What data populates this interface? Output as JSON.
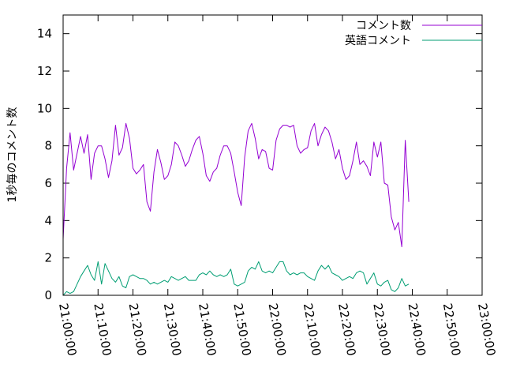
{
  "chart_data": {
    "type": "line",
    "title": "",
    "xlabel": "",
    "ylabel": "1秒毎のコメント数",
    "x_ticks": [
      "21:00:00",
      "21:10:00",
      "21:20:00",
      "21:30:00",
      "21:40:00",
      "21:50:00",
      "22:00:00",
      "22:10:00",
      "22:20:00",
      "22:30:00",
      "22:40:00",
      "22:50:00",
      "23:00:00"
    ],
    "y_ticks": [
      "0",
      "2",
      "4",
      "6",
      "8",
      "10",
      "12",
      "14"
    ],
    "xlim": [
      "21:00:00",
      "23:00:00"
    ],
    "ylim": [
      0,
      15
    ],
    "grid": false,
    "legend_position": "top-right",
    "x_step_seconds": 60,
    "series": [
      {
        "name": "コメント数",
        "color": "#9400d3",
        "values": [
          3.0,
          6.8,
          8.7,
          6.7,
          7.6,
          8.5,
          7.6,
          8.6,
          6.2,
          7.6,
          8.0,
          8.0,
          7.3,
          6.3,
          7.2,
          9.1,
          7.5,
          7.9,
          9.2,
          8.4,
          6.8,
          6.5,
          6.7,
          7.0,
          5.0,
          4.5,
          6.6,
          7.8,
          7.1,
          6.2,
          6.4,
          7.0,
          8.2,
          8.0,
          7.5,
          6.9,
          7.2,
          7.8,
          8.3,
          8.5,
          7.6,
          6.4,
          6.1,
          6.6,
          6.8,
          7.5,
          8.0,
          8.0,
          7.6,
          6.6,
          5.5,
          4.8,
          7.4,
          8.8,
          9.2,
          8.4,
          7.3,
          7.8,
          7.7,
          6.8,
          6.7,
          8.3,
          8.9,
          9.1,
          9.1,
          9.0,
          9.1,
          8.0,
          7.6,
          7.8,
          7.9,
          8.8,
          9.2,
          8.0,
          8.6,
          9.0,
          8.8,
          8.2,
          7.3,
          7.8,
          6.8,
          6.2,
          6.4,
          7.2,
          8.2,
          7.0,
          7.2,
          6.9,
          6.4,
          8.2,
          7.4,
          8.2,
          6.0,
          5.9,
          4.2,
          3.5,
          3.9,
          2.6,
          8.3,
          5.0
        ]
      },
      {
        "name": "英語コメント",
        "color": "#009e73",
        "values": [
          0.0,
          0.2,
          0.1,
          0.2,
          0.6,
          1.0,
          1.3,
          1.6,
          1.1,
          0.8,
          1.8,
          0.6,
          1.7,
          1.3,
          0.9,
          0.7,
          1.0,
          0.5,
          0.4,
          1.0,
          1.1,
          1.0,
          0.9,
          0.9,
          0.8,
          0.6,
          0.7,
          0.6,
          0.7,
          0.8,
          0.7,
          1.0,
          0.9,
          0.8,
          0.9,
          1.0,
          0.8,
          0.8,
          0.8,
          1.1,
          1.2,
          1.1,
          1.3,
          1.1,
          1.0,
          1.1,
          1.0,
          1.1,
          1.4,
          0.6,
          0.5,
          0.6,
          0.7,
          1.3,
          1.5,
          1.4,
          1.8,
          1.3,
          1.2,
          1.3,
          1.2,
          1.5,
          1.8,
          1.8,
          1.3,
          1.1,
          1.2,
          1.1,
          1.2,
          1.2,
          1.0,
          0.9,
          0.8,
          1.3,
          1.6,
          1.4,
          1.6,
          1.2,
          1.1,
          1.0,
          0.8,
          0.9,
          1.0,
          0.9,
          1.2,
          1.3,
          1.2,
          0.6,
          0.9,
          1.2,
          0.6,
          0.5,
          0.7,
          0.8,
          0.3,
          0.2,
          0.4,
          0.9,
          0.5,
          0.6
        ]
      }
    ]
  }
}
